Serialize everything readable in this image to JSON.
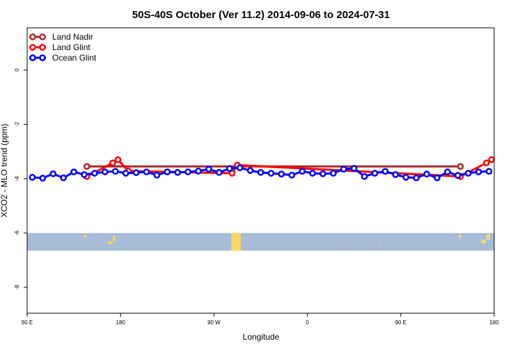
{
  "chart_data": {
    "type": "line",
    "title": "50S-40S October (Ver 11.2)   2014-09-06 to 2024-07-31",
    "xlabel": "Longitude",
    "ylabel": "XCO2 - MLO trend (ppm)",
    "xlim": [
      90,
      540
    ],
    "ylim": [
      -8.95,
      1.55
    ],
    "x_ticks": [
      {
        "value": 90,
        "label": "90 E"
      },
      {
        "value": 180,
        "label": "180"
      },
      {
        "value": 270,
        "label": "90 W"
      },
      {
        "value": 360,
        "label": "0"
      },
      {
        "value": 450,
        "label": "90 E"
      },
      {
        "value": 540,
        "label": "180"
      }
    ],
    "y_ticks": [
      {
        "value": 0,
        "label": "0"
      },
      {
        "value": -2,
        "label": "-2"
      },
      {
        "value": -4,
        "label": "-4"
      },
      {
        "value": -6,
        "label": "-6"
      },
      {
        "value": -8,
        "label": "-8"
      }
    ],
    "legend": {
      "position": "top-left"
    },
    "series": [
      {
        "name": "Land Nadir",
        "color": "#a52a2a",
        "x": [
          147.5,
          507.5
        ],
        "y": [
          -3.55,
          -3.55
        ]
      },
      {
        "name": "Land Glint",
        "color": "#ff0000",
        "x": [
          147.5,
          172.5,
          177.5,
          187.5,
          287.5,
          292.5,
          507.5,
          532.5,
          537.5
        ],
        "y": [
          -3.92,
          -3.42,
          -3.3,
          -3.72,
          -3.8,
          -3.5,
          -3.92,
          -3.42,
          -3.3
        ]
      },
      {
        "name": "Ocean Glint",
        "color": "#0000ff",
        "x": [
          95,
          105,
          115,
          125,
          135,
          145,
          155,
          165,
          175,
          185,
          195,
          205,
          215,
          225,
          235,
          245,
          255,
          265,
          275,
          285,
          295,
          305,
          315,
          325,
          335,
          345,
          355,
          365,
          375,
          385,
          395,
          405,
          415,
          425,
          435,
          445,
          455,
          465,
          475,
          485,
          495,
          505,
          515,
          525,
          535
        ],
        "y": [
          -3.95,
          -3.98,
          -3.82,
          -3.97,
          -3.75,
          -3.85,
          -3.8,
          -3.75,
          -3.73,
          -3.8,
          -3.78,
          -3.75,
          -3.87,
          -3.75,
          -3.77,
          -3.75,
          -3.72,
          -3.65,
          -3.77,
          -3.63,
          -3.6,
          -3.7,
          -3.77,
          -3.8,
          -3.83,
          -3.87,
          -3.73,
          -3.8,
          -3.82,
          -3.8,
          -3.65,
          -3.62,
          -3.92,
          -3.8,
          -3.73,
          -3.85,
          -3.95,
          -3.97,
          -3.83,
          -3.97,
          -3.75,
          -3.88,
          -3.8,
          -3.75,
          -3.73
        ]
      }
    ],
    "map_strip": {
      "y_top": -6.0,
      "y_bottom": -6.65,
      "ocean_color": "#a8bcd8",
      "land_color": "#f8d860"
    }
  }
}
